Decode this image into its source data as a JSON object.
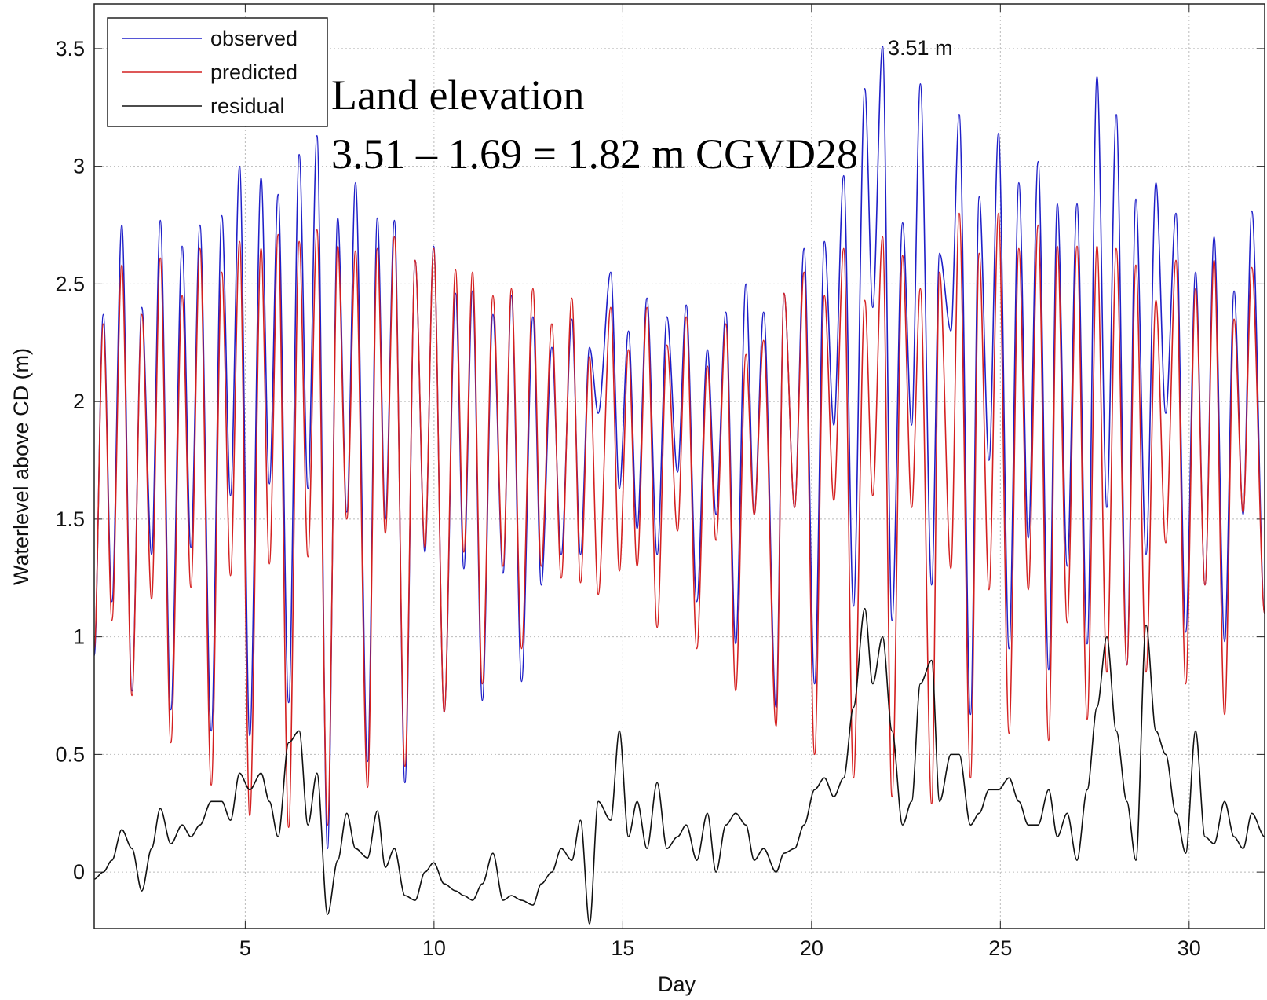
{
  "chart_data": {
    "type": "line",
    "xlabel": "Day",
    "ylabel": "Waterlevel above CD (m)",
    "annotations": [
      "3.51 m",
      "Land elevation",
      "3.51 – 1.69 = 1.82 m CGVD28"
    ],
    "xlim": [
      1,
      32
    ],
    "ylim": [
      -0.24,
      3.69
    ],
    "xticks": [
      5,
      10,
      15,
      20,
      25,
      30
    ],
    "yticks": [
      0,
      0.5,
      1,
      1.5,
      2,
      2.5,
      3,
      3.5
    ],
    "grid": true,
    "legend": "upper left",
    "x": [
      1.0,
      1.24,
      1.47,
      1.73,
      2.0,
      2.26,
      2.52,
      2.75,
      3.03,
      3.33,
      3.56,
      3.8,
      4.1,
      4.38,
      4.61,
      4.85,
      5.12,
      5.42,
      5.64,
      5.87,
      6.15,
      6.43,
      6.66,
      6.9,
      7.18,
      7.45,
      7.69,
      7.92,
      8.24,
      8.5,
      8.71,
      8.95,
      9.23,
      9.5,
      9.76,
      9.99,
      10.27,
      10.57,
      10.79,
      11.02,
      11.28,
      11.56,
      11.83,
      12.05,
      12.32,
      12.62,
      12.84,
      13.12,
      13.37,
      13.65,
      13.88,
      14.12,
      14.35,
      14.68,
      14.91,
      15.15,
      15.38,
      15.64,
      15.91,
      16.17,
      16.45,
      16.68,
      16.96,
      17.24,
      17.47,
      17.73,
      17.99,
      18.26,
      18.48,
      18.73,
      19.06,
      19.27,
      19.55,
      19.8,
      20.08,
      20.34,
      20.59,
      20.85,
      21.11,
      21.41,
      21.62,
      21.88,
      22.13,
      22.41,
      22.65,
      22.88,
      23.18,
      23.39,
      23.69,
      23.91,
      24.21,
      24.44,
      24.7,
      24.95,
      25.23,
      25.49,
      25.74,
      26.0,
      26.28,
      26.51,
      26.77,
      27.03,
      27.3,
      27.56,
      27.82,
      28.07,
      28.35,
      28.59,
      28.86,
      29.12,
      29.38,
      29.65,
      29.91,
      30.17,
      30.42,
      30.66,
      30.94,
      31.19,
      31.43,
      31.66,
      32.0
    ],
    "series": [
      {
        "name": "observed",
        "color": "#1f1fc8",
        "values": [
          0.92,
          2.37,
          1.15,
          2.75,
          0.77,
          2.4,
          1.35,
          2.77,
          0.69,
          2.66,
          1.38,
          2.75,
          0.6,
          2.79,
          1.6,
          3.0,
          0.58,
          2.95,
          1.65,
          2.88,
          0.72,
          3.05,
          1.63,
          3.13,
          0.1,
          2.78,
          1.53,
          2.93,
          0.47,
          2.78,
          1.5,
          2.77,
          0.38,
          2.6,
          1.36,
          2.66,
          0.68,
          2.46,
          1.29,
          2.47,
          0.73,
          2.37,
          1.27,
          2.45,
          0.81,
          2.36,
          1.22,
          2.23,
          1.35,
          2.35,
          1.35,
          2.23,
          1.95,
          2.55,
          1.63,
          2.3,
          1.46,
          2.44,
          1.35,
          2.36,
          1.7,
          2.41,
          1.15,
          2.22,
          1.52,
          2.38,
          0.97,
          2.5,
          1.52,
          2.38,
          0.7,
          2.46,
          1.55,
          2.65,
          0.8,
          2.68,
          1.9,
          2.96,
          1.13,
          3.33,
          2.4,
          3.51,
          1.07,
          2.76,
          1.9,
          3.35,
          1.22,
          2.63,
          2.3,
          3.22,
          0.67,
          2.87,
          1.75,
          3.14,
          0.95,
          2.93,
          1.42,
          3.02,
          0.86,
          2.84,
          1.3,
          2.84,
          0.97,
          3.38,
          1.55,
          3.22,
          0.88,
          2.86,
          1.35,
          2.93,
          1.95,
          2.8,
          1.02,
          2.55,
          1.22,
          2.7,
          0.98,
          2.47,
          1.52,
          2.81,
          1.1
        ]
      },
      {
        "name": "predicted",
        "color": "#d42020",
        "values": [
          0.95,
          2.33,
          1.07,
          2.58,
          0.75,
          2.37,
          1.16,
          2.61,
          0.55,
          2.45,
          1.21,
          2.65,
          0.37,
          2.55,
          1.26,
          2.68,
          0.24,
          2.65,
          1.31,
          2.71,
          0.19,
          2.68,
          1.34,
          2.73,
          0.2,
          2.66,
          1.5,
          2.64,
          0.36,
          2.65,
          1.44,
          2.7,
          0.45,
          2.6,
          1.38,
          2.65,
          0.68,
          2.56,
          1.36,
          2.55,
          0.8,
          2.45,
          1.3,
          2.48,
          0.95,
          2.48,
          1.3,
          2.33,
          1.25,
          2.44,
          1.23,
          2.19,
          1.18,
          2.4,
          1.28,
          2.22,
          1.3,
          2.4,
          1.04,
          2.24,
          1.45,
          2.36,
          0.95,
          2.15,
          1.41,
          2.33,
          0.77,
          2.2,
          1.52,
          2.26,
          0.62,
          2.46,
          1.55,
          2.55,
          0.5,
          2.45,
          1.58,
          2.65,
          0.4,
          2.43,
          1.6,
          2.7,
          0.32,
          2.62,
          1.55,
          2.48,
          0.29,
          2.55,
          1.29,
          2.8,
          0.4,
          2.63,
          1.2,
          2.8,
          0.59,
          2.65,
          1.2,
          2.75,
          0.56,
          2.66,
          1.06,
          2.66,
          0.65,
          2.66,
          0.85,
          2.65,
          0.88,
          2.58,
          0.85,
          2.43,
          1.4,
          2.6,
          0.8,
          2.48,
          1.22,
          2.6,
          0.67,
          2.35,
          1.53,
          2.57,
          1.1
        ]
      },
      {
        "name": "residual",
        "color": "#111111",
        "values": [
          -0.03,
          0.0,
          0.05,
          0.18,
          0.1,
          -0.08,
          0.1,
          0.27,
          0.12,
          0.2,
          0.15,
          0.2,
          0.3,
          0.3,
          0.22,
          0.42,
          0.35,
          0.42,
          0.3,
          0.15,
          0.55,
          0.6,
          0.2,
          0.42,
          -0.18,
          0.05,
          0.25,
          0.1,
          0.06,
          0.26,
          0.02,
          0.1,
          -0.1,
          -0.12,
          0.0,
          0.04,
          -0.05,
          -0.08,
          -0.1,
          -0.12,
          -0.05,
          0.08,
          -0.12,
          -0.1,
          -0.12,
          -0.14,
          -0.05,
          0.0,
          0.1,
          0.05,
          0.22,
          -0.22,
          0.3,
          0.22,
          0.6,
          0.15,
          0.3,
          0.1,
          0.38,
          0.1,
          0.15,
          0.2,
          0.05,
          0.25,
          0.0,
          0.2,
          0.25,
          0.2,
          0.05,
          0.1,
          0.0,
          0.08,
          0.1,
          0.2,
          0.35,
          0.4,
          0.32,
          0.4,
          0.7,
          1.12,
          0.8,
          1.0,
          0.6,
          0.2,
          0.3,
          0.8,
          0.9,
          0.3,
          0.5,
          0.5,
          0.2,
          0.25,
          0.35,
          0.35,
          0.4,
          0.3,
          0.2,
          0.2,
          0.35,
          0.15,
          0.25,
          0.05,
          0.35,
          0.7,
          1.0,
          0.6,
          0.3,
          0.05,
          1.05,
          0.6,
          0.5,
          0.25,
          0.08,
          0.6,
          0.15,
          0.12,
          0.3,
          0.15,
          0.1,
          0.25,
          0.15
        ]
      }
    ]
  }
}
